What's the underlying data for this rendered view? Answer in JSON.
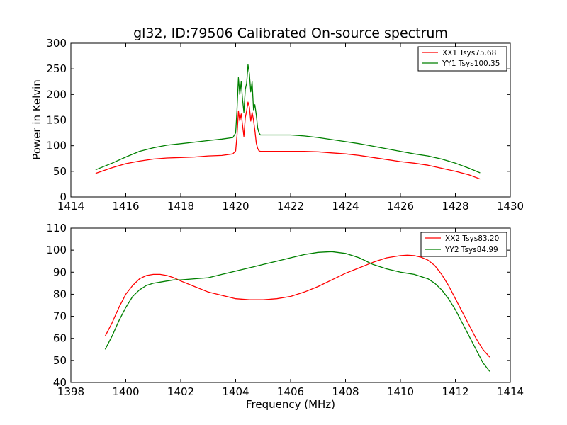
{
  "chart_data": [
    {
      "type": "line",
      "title": "gl32, ID:79506 Calibrated On-source spectrum",
      "xlabel": "",
      "ylabel": "Power in Kelvin",
      "xlim": [
        1414,
        1430
      ],
      "ylim": [
        0,
        300
      ],
      "xticks": [
        1414,
        1416,
        1418,
        1420,
        1422,
        1424,
        1426,
        1428,
        1430
      ],
      "yticks": [
        0,
        50,
        100,
        150,
        200,
        250,
        300
      ],
      "grid": false,
      "legend_position": "top-right",
      "series": [
        {
          "name": "XX1 Tsys75.68",
          "color": "#ff0000",
          "x": [
            1414.9,
            1415.5,
            1416.0,
            1416.5,
            1417.0,
            1417.5,
            1418.0,
            1418.5,
            1419.0,
            1419.5,
            1419.9,
            1420.0,
            1420.05,
            1420.1,
            1420.15,
            1420.2,
            1420.25,
            1420.3,
            1420.35,
            1420.4,
            1420.45,
            1420.5,
            1420.55,
            1420.6,
            1420.65,
            1420.7,
            1420.75,
            1420.8,
            1420.85,
            1420.9,
            1421.0,
            1421.5,
            1422.0,
            1422.5,
            1423.0,
            1423.5,
            1424.0,
            1424.5,
            1425.0,
            1425.5,
            1426.0,
            1426.5,
            1427.0,
            1427.5,
            1428.0,
            1428.5,
            1428.9
          ],
          "y": [
            46,
            57,
            65,
            70,
            74,
            76,
            77,
            78,
            80,
            81,
            84,
            90,
            120,
            168,
            148,
            162,
            140,
            118,
            155,
            168,
            185,
            175,
            148,
            165,
            150,
            130,
            105,
            95,
            90,
            89,
            89,
            89,
            89,
            89,
            88,
            86,
            84,
            81,
            77,
            73,
            69,
            66,
            62,
            56,
            50,
            43,
            35
          ]
        },
        {
          "name": "YY1 Tsys100.35",
          "color": "#008000",
          "x": [
            1414.9,
            1415.5,
            1416.0,
            1416.5,
            1417.0,
            1417.5,
            1418.0,
            1418.5,
            1419.0,
            1419.5,
            1419.9,
            1420.0,
            1420.05,
            1420.1,
            1420.15,
            1420.2,
            1420.25,
            1420.3,
            1420.35,
            1420.4,
            1420.45,
            1420.5,
            1420.55,
            1420.6,
            1420.65,
            1420.7,
            1420.75,
            1420.8,
            1420.85,
            1420.9,
            1421.0,
            1421.5,
            1422.0,
            1422.5,
            1423.0,
            1423.5,
            1424.0,
            1424.5,
            1425.0,
            1425.5,
            1426.0,
            1426.5,
            1427.0,
            1427.5,
            1428.0,
            1428.5,
            1428.9
          ],
          "y": [
            53,
            66,
            78,
            89,
            96,
            101,
            104,
            107,
            110,
            113,
            116,
            125,
            170,
            233,
            200,
            225,
            190,
            165,
            210,
            222,
            258,
            240,
            205,
            225,
            170,
            180,
            160,
            135,
            125,
            121,
            121,
            121,
            121,
            119,
            116,
            112,
            108,
            104,
            99,
            94,
            89,
            84,
            80,
            74,
            66,
            56,
            47
          ]
        }
      ]
    },
    {
      "type": "line",
      "title": "",
      "xlabel": "Frequency (MHz)",
      "ylabel": "",
      "xlim": [
        1398,
        1414
      ],
      "ylim": [
        40,
        110
      ],
      "xticks": [
        1398,
        1400,
        1402,
        1404,
        1406,
        1408,
        1410,
        1412,
        1414
      ],
      "yticks": [
        40,
        50,
        60,
        70,
        80,
        90,
        100,
        110
      ],
      "grid": false,
      "legend_position": "top-right",
      "series": [
        {
          "name": "XX2 Tsys83.20",
          "color": "#ff0000",
          "x": [
            1399.25,
            1399.5,
            1399.75,
            1400.0,
            1400.25,
            1400.5,
            1400.75,
            1401.0,
            1401.25,
            1401.5,
            1401.75,
            1402.0,
            1402.5,
            1403.0,
            1403.5,
            1404.0,
            1404.5,
            1405.0,
            1405.5,
            1406.0,
            1406.5,
            1407.0,
            1407.5,
            1408.0,
            1408.5,
            1409.0,
            1409.5,
            1410.0,
            1410.25,
            1410.5,
            1410.75,
            1411.0,
            1411.25,
            1411.5,
            1411.75,
            1412.0,
            1412.25,
            1412.5,
            1412.75,
            1413.0,
            1413.25
          ],
          "y": [
            61,
            67,
            74,
            80,
            84,
            87,
            88.5,
            89,
            89,
            88.5,
            87.5,
            86,
            83.5,
            81,
            79.5,
            78,
            77.5,
            77.5,
            78,
            79,
            81,
            83.5,
            86.5,
            89.5,
            92,
            94.5,
            96.5,
            97.5,
            97.7,
            97.5,
            96.8,
            95.5,
            93,
            89,
            84,
            78,
            72,
            66,
            60,
            55,
            51.5
          ]
        },
        {
          "name": "YY2 Tsys84.99",
          "color": "#008000",
          "x": [
            1399.25,
            1399.5,
            1399.75,
            1400.0,
            1400.25,
            1400.5,
            1400.75,
            1401.0,
            1401.25,
            1401.5,
            1401.75,
            1402.0,
            1402.5,
            1403.0,
            1403.5,
            1404.0,
            1404.5,
            1405.0,
            1405.5,
            1406.0,
            1406.5,
            1407.0,
            1407.5,
            1408.0,
            1408.5,
            1409.0,
            1409.5,
            1410.0,
            1410.25,
            1410.5,
            1410.75,
            1411.0,
            1411.25,
            1411.5,
            1411.75,
            1412.0,
            1412.25,
            1412.5,
            1412.75,
            1413.0,
            1413.25
          ],
          "y": [
            55,
            61,
            68,
            74,
            79,
            82,
            84,
            85,
            85.5,
            86,
            86.5,
            86.5,
            87,
            87.5,
            89,
            90.5,
            92,
            93.5,
            95,
            96.5,
            98,
            99,
            99.3,
            98.5,
            96.5,
            93.5,
            91.5,
            90,
            89.5,
            89,
            88,
            87,
            85,
            82,
            78,
            73,
            67,
            61,
            55,
            49,
            45
          ]
        }
      ]
    }
  ]
}
